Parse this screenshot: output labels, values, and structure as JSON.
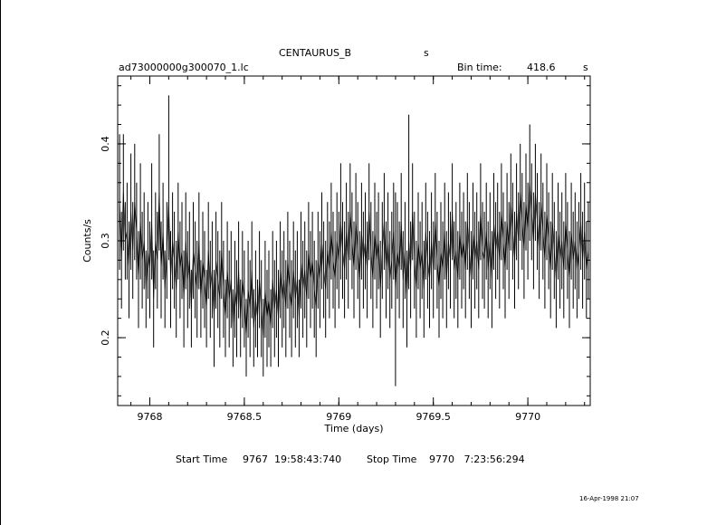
{
  "header": {
    "object": "CENTAURUS_B",
    "object_unit": "s",
    "filename": "ad73000000g300070_1.lc",
    "bin_label": "Bin time:",
    "bin_value": "418.6",
    "bin_unit": "s"
  },
  "footer": {
    "start_label": "Start Time",
    "start_value": "9767  19:58:43:740",
    "stop_label": "Stop Time",
    "stop_value": "9770   7:23:56:294",
    "timestamp": "16-Apr-1998 21:07"
  },
  "chart_data": {
    "type": "line",
    "xlabel": "Time (days)",
    "ylabel": "Counts/s",
    "xlim": [
      9767.83,
      9770.33
    ],
    "ylim": [
      0.13,
      0.47
    ],
    "xticks": [
      9768,
      9768.5,
      9769,
      9769.5,
      9770
    ],
    "xtick_labels": [
      "9768",
      "9768.5",
      "9769",
      "9769.5",
      "9770"
    ],
    "yticks": [
      0.2,
      0.3,
      0.4
    ],
    "ytick_labels": [
      "0.2",
      "0.3",
      "0.4"
    ],
    "grid": false,
    "series": [
      {
        "x": [
          9767.84,
          9767.85,
          9767.86,
          9767.87,
          9767.88,
          9767.89,
          9767.9,
          9767.91,
          9767.92,
          9767.93,
          9767.94,
          9767.95,
          9767.96,
          9767.97,
          9767.98,
          9767.99,
          9768.0,
          9768.01,
          9768.02,
          9768.03,
          9768.04,
          9768.05,
          9768.06,
          9768.07,
          9768.08,
          9768.09,
          9768.1,
          9768.11,
          9768.12,
          9768.13,
          9768.14,
          9768.15,
          9768.16,
          9768.17,
          9768.18,
          9768.19,
          9768.2,
          9768.21,
          9768.22,
          9768.23,
          9768.24,
          9768.25,
          9768.26,
          9768.27,
          9768.28,
          9768.29,
          9768.3,
          9768.31,
          9768.32,
          9768.33,
          9768.34,
          9768.35,
          9768.36,
          9768.37,
          9768.38,
          9768.39,
          9768.4,
          9768.41,
          9768.42,
          9768.43,
          9768.44,
          9768.45,
          9768.46,
          9768.47,
          9768.48,
          9768.49,
          9768.5,
          9768.51,
          9768.52,
          9768.53,
          9768.54,
          9768.55,
          9768.56,
          9768.57,
          9768.58,
          9768.59,
          9768.6,
          9768.61,
          9768.62,
          9768.63,
          9768.64,
          9768.65,
          9768.66,
          9768.67,
          9768.68,
          9768.69,
          9768.7,
          9768.71,
          9768.72,
          9768.73,
          9768.74,
          9768.75,
          9768.76,
          9768.77,
          9768.78,
          9768.79,
          9768.8,
          9768.81,
          9768.82,
          9768.83,
          9768.84,
          9768.85,
          9768.86,
          9768.87,
          9768.88,
          9768.89,
          9768.9,
          9768.91,
          9768.92,
          9768.93,
          9768.94,
          9768.95,
          9768.96,
          9768.97,
          9768.98,
          9768.99,
          9769.0,
          9769.01,
          9769.02,
          9769.03,
          9769.04,
          9769.05,
          9769.06,
          9769.07,
          9769.08,
          9769.09,
          9769.1,
          9769.11,
          9769.12,
          9769.13,
          9769.14,
          9769.15,
          9769.16,
          9769.17,
          9769.18,
          9769.19,
          9769.2,
          9769.21,
          9769.22,
          9769.23,
          9769.24,
          9769.25,
          9769.26,
          9769.27,
          9769.28,
          9769.29,
          9769.3,
          9769.31,
          9769.32,
          9769.33,
          9769.34,
          9769.35,
          9769.36,
          9769.37,
          9769.38,
          9769.39,
          9769.4,
          9769.41,
          9769.42,
          9769.43,
          9769.44,
          9769.45,
          9769.46,
          9769.47,
          9769.48,
          9769.49,
          9769.5,
          9769.51,
          9769.52,
          9769.53,
          9769.54,
          9769.55,
          9769.56,
          9769.57,
          9769.58,
          9769.59,
          9769.6,
          9769.61,
          9769.62,
          9769.63,
          9769.64,
          9769.65,
          9769.66,
          9769.67,
          9769.68,
          9769.69,
          9769.7,
          9769.71,
          9769.72,
          9769.73,
          9769.74,
          9769.75,
          9769.76,
          9769.77,
          9769.78,
          9769.79,
          9769.8,
          9769.81,
          9769.82,
          9769.83,
          9769.84,
          9769.85,
          9769.86,
          9769.87,
          9769.88,
          9769.89,
          9769.9,
          9769.91,
          9769.92,
          9769.93,
          9769.94,
          9769.95,
          9769.96,
          9769.97,
          9769.98,
          9769.99,
          9770.0,
          9770.01,
          9770.02,
          9770.03,
          9770.04,
          9770.05,
          9770.06,
          9770.07,
          9770.08,
          9770.09,
          9770.1,
          9770.11,
          9770.12,
          9770.13,
          9770.14,
          9770.15,
          9770.16,
          9770.17,
          9770.18,
          9770.19,
          9770.2,
          9770.21,
          9770.22,
          9770.23,
          9770.24,
          9770.25,
          9770.26,
          9770.27,
          9770.28,
          9770.29,
          9770.3,
          9770.31,
          9770.32
        ],
        "y": [
          0.34,
          0.28,
          0.35,
          0.3,
          0.31,
          0.27,
          0.33,
          0.29,
          0.34,
          0.31,
          0.26,
          0.32,
          0.28,
          0.3,
          0.25,
          0.29,
          0.27,
          0.32,
          0.24,
          0.3,
          0.28,
          0.35,
          0.27,
          0.31,
          0.25,
          0.29,
          0.34,
          0.26,
          0.3,
          0.28,
          0.25,
          0.31,
          0.27,
          0.29,
          0.24,
          0.3,
          0.26,
          0.28,
          0.23,
          0.29,
          0.27,
          0.25,
          0.3,
          0.24,
          0.28,
          0.26,
          0.23,
          0.29,
          0.25,
          0.27,
          0.22,
          0.28,
          0.26,
          0.24,
          0.29,
          0.25,
          0.22,
          0.27,
          0.24,
          0.26,
          0.21,
          0.25,
          0.23,
          0.27,
          0.22,
          0.26,
          0.24,
          0.2,
          0.25,
          0.23,
          0.27,
          0.21,
          0.24,
          0.22,
          0.26,
          0.23,
          0.2,
          0.25,
          0.22,
          0.24,
          0.21,
          0.26,
          0.23,
          0.25,
          0.22,
          0.27,
          0.24,
          0.26,
          0.23,
          0.28,
          0.25,
          0.23,
          0.27,
          0.24,
          0.26,
          0.22,
          0.28,
          0.25,
          0.27,
          0.24,
          0.29,
          0.26,
          0.28,
          0.25,
          0.23,
          0.28,
          0.26,
          0.3,
          0.27,
          0.25,
          0.29,
          0.27,
          0.31,
          0.28,
          0.26,
          0.3,
          0.28,
          0.32,
          0.29,
          0.27,
          0.31,
          0.28,
          0.33,
          0.3,
          0.27,
          0.32,
          0.29,
          0.26,
          0.31,
          0.28,
          0.3,
          0.27,
          0.33,
          0.29,
          0.26,
          0.31,
          0.28,
          0.3,
          0.25,
          0.29,
          0.32,
          0.27,
          0.3,
          0.26,
          0.28,
          0.31,
          0.25,
          0.29,
          0.27,
          0.32,
          0.26,
          0.29,
          0.24,
          0.3,
          0.27,
          0.33,
          0.28,
          0.25,
          0.3,
          0.27,
          0.29,
          0.25,
          0.31,
          0.28,
          0.26,
          0.3,
          0.27,
          0.32,
          0.28,
          0.25,
          0.29,
          0.27,
          0.31,
          0.26,
          0.3,
          0.28,
          0.33,
          0.27,
          0.29,
          0.26,
          0.31,
          0.28,
          0.3,
          0.27,
          0.32,
          0.29,
          0.26,
          0.31,
          0.28,
          0.3,
          0.27,
          0.33,
          0.29,
          0.28,
          0.31,
          0.27,
          0.3,
          0.26,
          0.32,
          0.29,
          0.31,
          0.28,
          0.33,
          0.3,
          0.27,
          0.32,
          0.29,
          0.34,
          0.31,
          0.28,
          0.33,
          0.3,
          0.35,
          0.32,
          0.29,
          0.34,
          0.31,
          0.36,
          0.33,
          0.3,
          0.35,
          0.32,
          0.29,
          0.34,
          0.31,
          0.28,
          0.33,
          0.3,
          0.27,
          0.32,
          0.29,
          0.26,
          0.31,
          0.28,
          0.3,
          0.27,
          0.32,
          0.29,
          0.26,
          0.31,
          0.28,
          0.3,
          0.27,
          0.29,
          0.32,
          0.28,
          0.31,
          0.27,
          0.29
        ],
        "err_lo": [
          0.27,
          0.23,
          0.29,
          0.26,
          0.26,
          0.22,
          0.27,
          0.24,
          0.28,
          0.26,
          0.21,
          0.26,
          0.23,
          0.25,
          0.21,
          0.24,
          0.22,
          0.26,
          0.19,
          0.25,
          0.23,
          0.29,
          0.22,
          0.26,
          0.21,
          0.24,
          0.28,
          0.21,
          0.25,
          0.23,
          0.2,
          0.26,
          0.22,
          0.24,
          0.19,
          0.25,
          0.21,
          0.23,
          0.19,
          0.24,
          0.22,
          0.2,
          0.25,
          0.2,
          0.23,
          0.21,
          0.19,
          0.24,
          0.2,
          0.22,
          0.17,
          0.23,
          0.21,
          0.19,
          0.24,
          0.2,
          0.18,
          0.22,
          0.19,
          0.21,
          0.17,
          0.2,
          0.18,
          0.22,
          0.18,
          0.21,
          0.19,
          0.16,
          0.2,
          0.18,
          0.22,
          0.17,
          0.19,
          0.18,
          0.21,
          0.18,
          0.16,
          0.2,
          0.17,
          0.19,
          0.17,
          0.21,
          0.18,
          0.2,
          0.17,
          0.22,
          0.19,
          0.21,
          0.18,
          0.23,
          0.2,
          0.18,
          0.22,
          0.19,
          0.21,
          0.18,
          0.23,
          0.2,
          0.22,
          0.19,
          0.24,
          0.21,
          0.23,
          0.2,
          0.18,
          0.23,
          0.21,
          0.25,
          0.22,
          0.2,
          0.24,
          0.22,
          0.26,
          0.23,
          0.21,
          0.25,
          0.23,
          0.26,
          0.24,
          0.22,
          0.26,
          0.23,
          0.28,
          0.25,
          0.22,
          0.27,
          0.24,
          0.21,
          0.26,
          0.23,
          0.25,
          0.22,
          0.28,
          0.24,
          0.21,
          0.26,
          0.23,
          0.25,
          0.2,
          0.24,
          0.27,
          0.22,
          0.25,
          0.21,
          0.23,
          0.26,
          0.15,
          0.24,
          0.22,
          0.27,
          0.21,
          0.24,
          0.19,
          0.25,
          0.22,
          0.28,
          0.23,
          0.2,
          0.25,
          0.22,
          0.24,
          0.2,
          0.26,
          0.23,
          0.21,
          0.25,
          0.22,
          0.27,
          0.23,
          0.2,
          0.24,
          0.22,
          0.26,
          0.21,
          0.25,
          0.23,
          0.28,
          0.22,
          0.24,
          0.21,
          0.26,
          0.23,
          0.25,
          0.22,
          0.27,
          0.24,
          0.21,
          0.26,
          0.23,
          0.25,
          0.22,
          0.28,
          0.24,
          0.23,
          0.26,
          0.22,
          0.25,
          0.21,
          0.27,
          0.24,
          0.26,
          0.23,
          0.28,
          0.25,
          0.22,
          0.27,
          0.24,
          0.29,
          0.26,
          0.23,
          0.28,
          0.25,
          0.3,
          0.27,
          0.24,
          0.29,
          0.26,
          0.3,
          0.28,
          0.25,
          0.3,
          0.27,
          0.24,
          0.29,
          0.26,
          0.23,
          0.28,
          0.25,
          0.22,
          0.27,
          0.24,
          0.21,
          0.26,
          0.23,
          0.25,
          0.22,
          0.27,
          0.24,
          0.21,
          0.26,
          0.23,
          0.25,
          0.22,
          0.24,
          0.27,
          0.23,
          0.26,
          0.22,
          0.24
        ],
        "err_hi": [
          0.41,
          0.33,
          0.41,
          0.34,
          0.36,
          0.32,
          0.39,
          0.34,
          0.4,
          0.36,
          0.31,
          0.38,
          0.33,
          0.35,
          0.29,
          0.34,
          0.32,
          0.38,
          0.29,
          0.35,
          0.33,
          0.41,
          0.32,
          0.36,
          0.29,
          0.34,
          0.45,
          0.31,
          0.35,
          0.33,
          0.3,
          0.36,
          0.32,
          0.34,
          0.29,
          0.35,
          0.31,
          0.33,
          0.27,
          0.34,
          0.32,
          0.3,
          0.35,
          0.28,
          0.33,
          0.31,
          0.27,
          0.34,
          0.3,
          0.32,
          0.27,
          0.33,
          0.31,
          0.29,
          0.34,
          0.3,
          0.26,
          0.32,
          0.29,
          0.31,
          0.25,
          0.3,
          0.28,
          0.32,
          0.26,
          0.31,
          0.29,
          0.24,
          0.3,
          0.28,
          0.32,
          0.25,
          0.29,
          0.26,
          0.31,
          0.28,
          0.24,
          0.3,
          0.27,
          0.29,
          0.25,
          0.31,
          0.28,
          0.3,
          0.27,
          0.32,
          0.29,
          0.31,
          0.28,
          0.33,
          0.3,
          0.28,
          0.32,
          0.29,
          0.31,
          0.26,
          0.33,
          0.3,
          0.32,
          0.29,
          0.34,
          0.31,
          0.33,
          0.3,
          0.28,
          0.33,
          0.31,
          0.35,
          0.32,
          0.3,
          0.34,
          0.32,
          0.36,
          0.33,
          0.31,
          0.35,
          0.33,
          0.38,
          0.34,
          0.32,
          0.36,
          0.33,
          0.38,
          0.35,
          0.32,
          0.37,
          0.34,
          0.31,
          0.36,
          0.33,
          0.35,
          0.32,
          0.38,
          0.34,
          0.31,
          0.36,
          0.33,
          0.35,
          0.3,
          0.34,
          0.37,
          0.32,
          0.35,
          0.31,
          0.33,
          0.36,
          0.35,
          0.34,
          0.32,
          0.37,
          0.31,
          0.34,
          0.29,
          0.43,
          0.32,
          0.38,
          0.33,
          0.3,
          0.35,
          0.32,
          0.34,
          0.3,
          0.36,
          0.33,
          0.31,
          0.35,
          0.32,
          0.37,
          0.33,
          0.3,
          0.34,
          0.32,
          0.36,
          0.31,
          0.35,
          0.33,
          0.38,
          0.32,
          0.34,
          0.31,
          0.36,
          0.33,
          0.35,
          0.32,
          0.37,
          0.34,
          0.31,
          0.36,
          0.33,
          0.35,
          0.32,
          0.38,
          0.34,
          0.33,
          0.36,
          0.32,
          0.35,
          0.31,
          0.37,
          0.34,
          0.36,
          0.33,
          0.38,
          0.35,
          0.32,
          0.37,
          0.34,
          0.39,
          0.36,
          0.33,
          0.38,
          0.35,
          0.4,
          0.37,
          0.34,
          0.39,
          0.36,
          0.42,
          0.38,
          0.35,
          0.4,
          0.37,
          0.34,
          0.39,
          0.36,
          0.33,
          0.38,
          0.35,
          0.32,
          0.37,
          0.34,
          0.31,
          0.36,
          0.33,
          0.35,
          0.32,
          0.37,
          0.34,
          0.31,
          0.36,
          0.33,
          0.35,
          0.32,
          0.34,
          0.37,
          0.33,
          0.36,
          0.32,
          0.34
        ]
      }
    ]
  }
}
